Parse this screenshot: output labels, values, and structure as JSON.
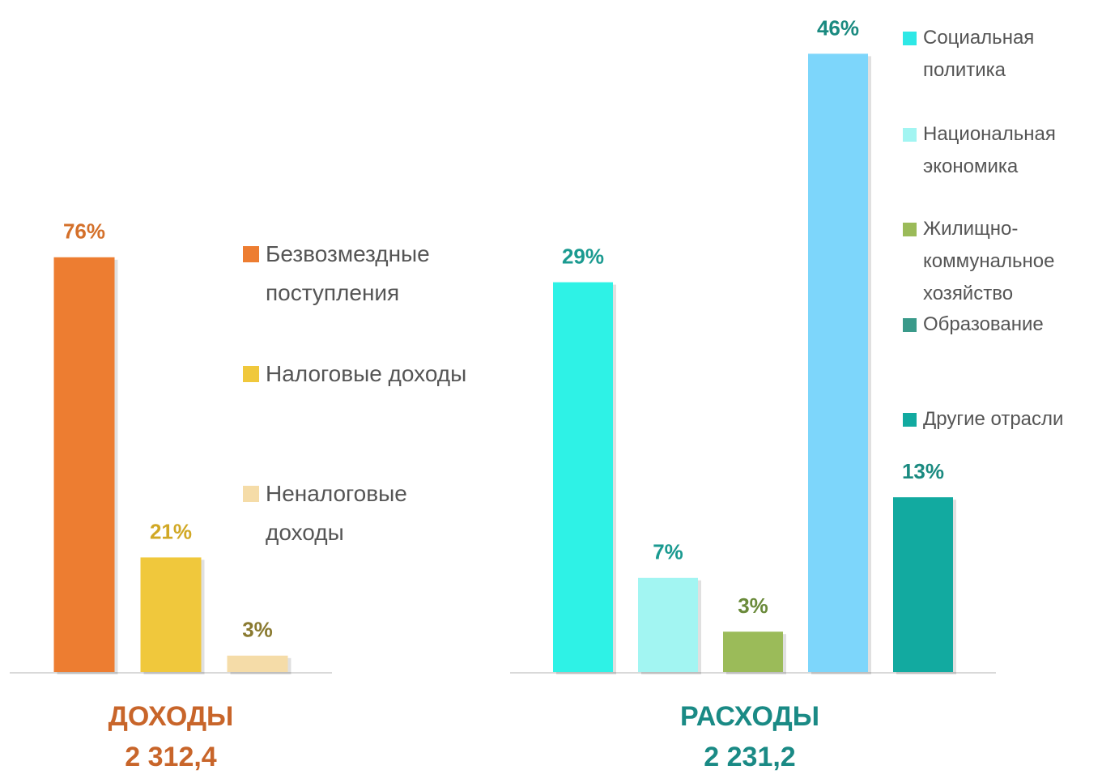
{
  "chart_data": [
    {
      "type": "bar",
      "title": "ДОХОДЫ",
      "subtitle": "2 312,4",
      "title_color": "#c8652a",
      "categories": [
        "Безвозмездные поступления",
        "Налоговые доходы",
        "Неналоговые доходы"
      ],
      "values": [
        76,
        21,
        3
      ],
      "value_labels": [
        "76%",
        "21%",
        "3%"
      ],
      "colors": [
        "#ed7d31",
        "#f0c83c",
        "#f5dca8"
      ],
      "label_colors": [
        "#d4702a",
        "#d1a825",
        "#8a7a30"
      ],
      "legend_colors": [
        "#ed7d31",
        "#f0c83c",
        "#f5dca8"
      ],
      "ylim": [
        0,
        100
      ]
    },
    {
      "type": "bar",
      "title": "РАСХОДЫ",
      "subtitle": "2 231,2",
      "title_color": "#1a8a85",
      "categories": [
        "Социальная политика",
        "Национальная экономика",
        "Жилищно-коммунальное хозяйство",
        "Образование",
        "Другие отрасли"
      ],
      "values": [
        29,
        7,
        3,
        46,
        13
      ],
      "value_labels": [
        "29%",
        "7%",
        "3%",
        "46%",
        "13%"
      ],
      "colors": [
        "#2ef2e6",
        "#a2f5f2",
        "#9bbb59",
        "#7dd6fb",
        "#12aaa0"
      ],
      "label_colors": [
        "#1a9a90",
        "#1a9a90",
        "#6a8a3a",
        "#1a8a80",
        "#1a8a80"
      ],
      "legend_colors": [
        "#2ee8e6",
        "#a2f5f2",
        "#9bbb59",
        "#3a9a8a",
        "#12aaa0"
      ],
      "ylim": [
        0,
        50
      ]
    }
  ]
}
